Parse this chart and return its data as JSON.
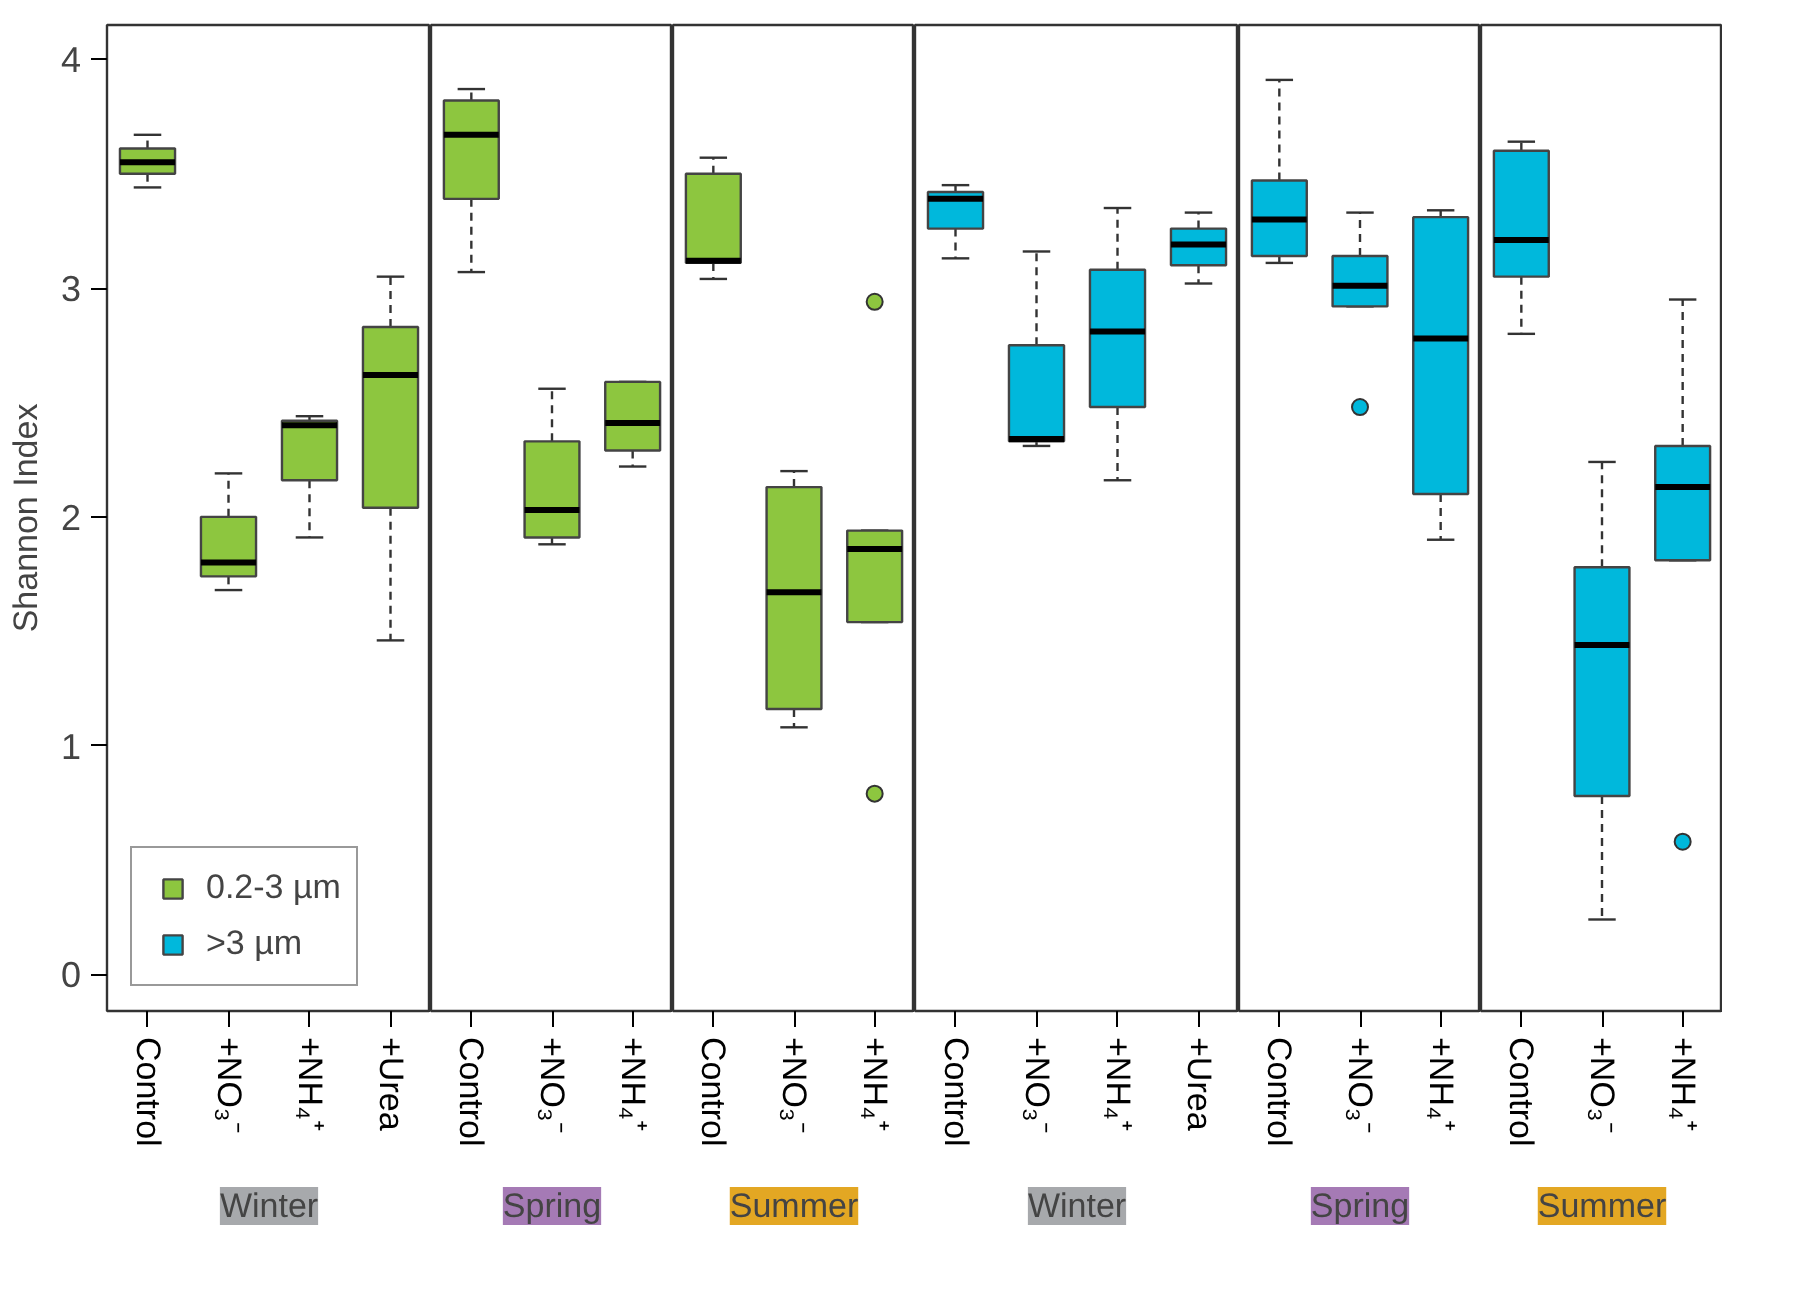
{
  "chart_data": [
    {
      "type": "box",
      "xlabel": "Winter",
      "ylabel": "Shannon Index",
      "categories": [
        "Control",
        "+NO₃⁻",
        "+NH₄⁺",
        "+Urea"
      ],
      "ylim": [
        -0.16,
        4.15
      ],
      "yticks": [
        0,
        1,
        2,
        3,
        4
      ],
      "grid": false,
      "legend": "bottom left",
      "series": [
        {
          "name": "0.2-3 µm",
          "color": "#8dc63f",
          "boxes": [
            {
              "low": 3.44,
              "q1": 3.5,
              "median": 3.55,
              "q3": 3.61,
              "high": 3.67
            },
            {
              "low": 1.68,
              "q1": 1.74,
              "median": 1.8,
              "q3": 2.0,
              "high": 2.19
            },
            {
              "low": 1.91,
              "q1": 2.16,
              "median": 2.4,
              "q3": 2.42,
              "high": 2.44
            },
            {
              "low": 1.46,
              "q1": 2.04,
              "median": 2.62,
              "q3": 2.83,
              "high": 3.05
            }
          ]
        },
        {
          "name": ">3 µm",
          "color": "#00b8dc",
          "boxes": [
            null,
            null,
            null,
            null
          ]
        }
      ]
    },
    {
      "type": "box",
      "xlabel": "Spring",
      "categories": [
        "Control",
        "+NO₃⁻",
        "+NH₄⁺"
      ],
      "ylim": [
        -0.16,
        4.15
      ],
      "tick_labels": "x",
      "grid": false,
      "series": [
        {
          "color": "#8dc63f",
          "boxes": [
            {
              "low": 3.07,
              "q1": 3.39,
              "median": 3.67,
              "q3": 3.82,
              "high": 3.87
            },
            {
              "low": 1.88,
              "q1": 1.91,
              "median": 2.03,
              "q3": 2.33,
              "high": 2.56
            },
            {
              "low": 2.22,
              "q1": 2.29,
              "median": 2.41,
              "q3": 2.59,
              "high": 2.59
            }
          ]
        }
      ]
    },
    {
      "type": "box",
      "xlabel": "Summer",
      "categories": [
        "Control",
        "+NO₃⁻",
        "+NH₄⁺"
      ],
      "ylim": [
        -0.16,
        4.15
      ],
      "tick_labels": "x",
      "grid": false,
      "series": [
        {
          "color": "#8dc63f",
          "boxes": [
            {
              "low": 3.04,
              "q1": 3.11,
              "median": 3.12,
              "q3": 3.5,
              "high": 3.57
            },
            {
              "low": 1.08,
              "q1": 1.16,
              "median": 1.67,
              "q3": 2.13,
              "high": 2.2
            },
            {
              "low": 1.54,
              "q1": 1.54,
              "median": 1.86,
              "q3": 1.94,
              "high": 1.94,
              "outliers": [
                2.94,
                0.79
              ]
            }
          ]
        }
      ]
    },
    {
      "type": "box",
      "xlabel": "Winter",
      "categories": [
        "Control",
        "+NO₃⁻",
        "+NH₄⁺",
        "+Urea"
      ],
      "ylim": [
        -0.16,
        4.15
      ],
      "tick_labels": "x",
      "grid": false,
      "series": [
        {
          "color": "#00b8dc",
          "boxes": [
            {
              "low": 3.13,
              "q1": 3.26,
              "median": 3.39,
              "q3": 3.42,
              "high": 3.45
            },
            {
              "low": 2.31,
              "q1": 2.33,
              "median": 2.34,
              "q3": 2.75,
              "high": 3.16
            },
            {
              "low": 2.16,
              "q1": 2.48,
              "median": 2.81,
              "q3": 3.08,
              "high": 3.35
            },
            {
              "low": 3.02,
              "q1": 3.1,
              "median": 3.19,
              "q3": 3.26,
              "high": 3.33
            }
          ]
        }
      ]
    },
    {
      "type": "box",
      "xlabel": "Spring",
      "categories": [
        "Control",
        "+NO₃⁻",
        "+NH₄⁺"
      ],
      "ylim": [
        -0.16,
        4.15
      ],
      "tick_labels": "x",
      "grid": false,
      "series": [
        {
          "color": "#00b8dc",
          "boxes": [
            {
              "low": 3.11,
              "q1": 3.14,
              "median": 3.3,
              "q3": 3.47,
              "high": 3.91
            },
            {
              "low": 2.92,
              "q1": 2.92,
              "median": 3.01,
              "q3": 3.14,
              "high": 3.33,
              "outliers": [
                2.48
              ]
            },
            {
              "low": 1.9,
              "q1": 2.1,
              "median": 2.78,
              "q3": 3.31,
              "high": 3.34
            }
          ]
        }
      ]
    },
    {
      "type": "box",
      "xlabel": "Summer",
      "categories": [
        "Control",
        "+NO₃⁻",
        "+NH₄⁺"
      ],
      "ylim": [
        -0.16,
        4.15
      ],
      "tick_labels": "x",
      "grid": false,
      "series": [
        {
          "color": "#00b8dc",
          "boxes": [
            {
              "low": 2.8,
              "q1": 3.05,
              "median": 3.21,
              "q3": 3.6,
              "high": 3.64
            },
            {
              "low": 0.24,
              "q1": 0.78,
              "median": 1.44,
              "q3": 1.78,
              "high": 2.24
            },
            {
              "low": 1.81,
              "q1": 1.81,
              "median": 2.13,
              "q3": 2.31,
              "high": 2.95,
              "outliers": [
                0.58
              ]
            }
          ]
        }
      ]
    }
  ]
}
